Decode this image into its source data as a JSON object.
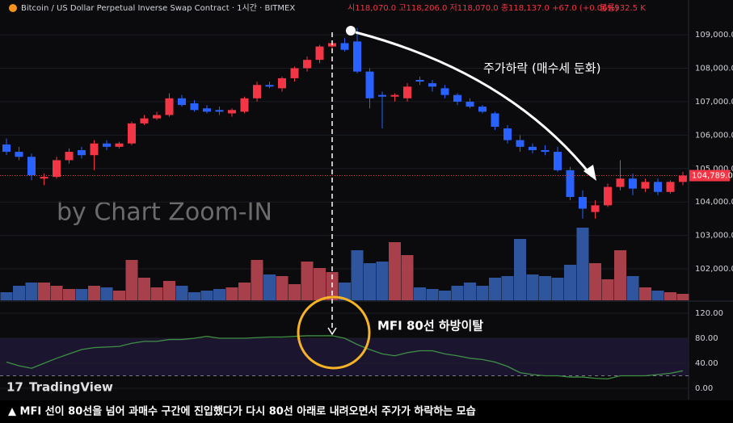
{
  "chart_data": [
    {
      "type": "candlestick",
      "title": "Bitcoin / US Dollar Perpetual Inverse Swap Contract · 1시간 · BITMEX",
      "header_stats": "시118,070.0 고118,206.0 저118,070.0 종118,137.0 +67.0 (+0.06%)",
      "volume_stat": "볼륨932.5 K",
      "watermark": "by Chart Zoom-IN",
      "annotation": "주가하락 (매수세 둔화)",
      "up_color": "#f23645",
      "down_color": "#2962ff",
      "volume_up_color": "#a8404b",
      "volume_down_color": "#2f559e",
      "open": [
        105720,
        105500,
        105350,
        104700,
        104750,
        105250,
        105550,
        105400,
        105750,
        105650,
        105750,
        106350,
        106500,
        106600,
        107100,
        106950,
        106800,
        106750,
        106650,
        106700,
        107100,
        107500,
        107400,
        107700,
        108000,
        108250,
        108650,
        108750,
        108800,
        107900,
        107200,
        107150,
        107100,
        107650,
        107550,
        107400,
        107200,
        107000,
        106850,
        106650,
        106200,
        105850,
        105650,
        105550,
        105500,
        104950,
        104150,
        103700,
        103900,
        104450,
        104700,
        104400,
        104600,
        104300,
        104600
      ],
      "high": [
        105900,
        105650,
        105450,
        104850,
        105350,
        105600,
        105650,
        105850,
        105850,
        105800,
        106400,
        106600,
        106700,
        107250,
        107200,
        107050,
        106900,
        106850,
        106800,
        107150,
        107600,
        107600,
        107750,
        108050,
        108350,
        108700,
        108800,
        108900,
        109200,
        108000,
        107300,
        107250,
        107550,
        107750,
        107650,
        107500,
        107250,
        107100,
        106900,
        106700,
        106300,
        106000,
        105750,
        105700,
        105650,
        105050,
        104350,
        104050,
        104550,
        105250,
        104850,
        104700,
        104700,
        104650,
        104900
      ],
      "low": [
        105400,
        105250,
        104650,
        104500,
        104700,
        105150,
        105300,
        104950,
        105550,
        105600,
        105700,
        106300,
        106450,
        106550,
        106850,
        106700,
        106650,
        106600,
        106550,
        106650,
        107000,
        107400,
        107300,
        107600,
        107900,
        108150,
        108550,
        108500,
        107850,
        106800,
        106200,
        107000,
        107000,
        107500,
        107300,
        107100,
        106900,
        106800,
        106650,
        106150,
        105750,
        105500,
        105450,
        105400,
        104900,
        104050,
        103500,
        103500,
        103850,
        104350,
        104200,
        104300,
        104200,
        104250,
        104500
      ],
      "close": [
        105500,
        105350,
        104800,
        104750,
        105250,
        105500,
        105400,
        105750,
        105650,
        105750,
        106350,
        106500,
        106600,
        107100,
        106900,
        106750,
        106700,
        106700,
        106750,
        107100,
        107500,
        107450,
        107700,
        108000,
        108250,
        108650,
        108750,
        108550,
        107900,
        107100,
        107150,
        107200,
        107450,
        107600,
        107450,
        107200,
        107000,
        106850,
        106700,
        106250,
        105850,
        105650,
        105550,
        105500,
        104950,
        104150,
        103800,
        103900,
        104450,
        104700,
        104400,
        104600,
        104300,
        104600,
        104789
      ],
      "volume": [
        10,
        18,
        22,
        22,
        18,
        14,
        14,
        18,
        16,
        12,
        50,
        28,
        16,
        24,
        18,
        10,
        12,
        14,
        16,
        22,
        50,
        32,
        30,
        20,
        48,
        40,
        35,
        22,
        62,
        46,
        48,
        72,
        56,
        16,
        14,
        12,
        18,
        22,
        18,
        28,
        30,
        76,
        32,
        30,
        28,
        44,
        90,
        46,
        26,
        62,
        30,
        16,
        12,
        10,
        8
      ],
      "volume_lim": [
        0,
        100
      ],
      "ylim": [
        101060,
        110040
      ],
      "yticks": [
        {
          "value": 109000,
          "label": "109,000.0"
        },
        {
          "value": 108000,
          "label": "108,000.0"
        },
        {
          "value": 107000,
          "label": "107,000.0"
        },
        {
          "value": 106000,
          "label": "106,000.0"
        },
        {
          "value": 105000,
          "label": "105,000.0"
        },
        {
          "value": 104000,
          "label": "104,000.0"
        },
        {
          "value": 103000,
          "label": "103,000.0"
        },
        {
          "value": 102000,
          "label": "102,000.0"
        }
      ],
      "last_price": {
        "value": 104789,
        "label": "104,789.0"
      }
    },
    {
      "type": "line",
      "annotation": "MFI 80선 하방이탈",
      "color": "#3f8f46",
      "values": [
        42,
        36,
        32,
        40,
        48,
        55,
        62,
        65,
        66,
        67,
        72,
        75,
        75,
        78,
        78,
        80,
        83,
        80,
        80,
        80,
        81,
        82,
        82,
        83,
        84,
        84,
        84,
        80,
        70,
        62,
        55,
        52,
        57,
        60,
        60,
        55,
        52,
        48,
        46,
        42,
        35,
        25,
        22,
        20,
        20,
        18,
        18,
        16,
        15,
        20,
        20,
        20,
        22,
        24,
        28
      ],
      "ylim": [
        -11.6,
        136.8
      ],
      "yticks": [
        {
          "value": 120,
          "label": "120.00"
        },
        {
          "value": 80,
          "label": "80.00"
        },
        {
          "value": 40,
          "label": "40.00"
        },
        {
          "value": 0,
          "label": "0.00"
        }
      ],
      "bands": [
        20,
        80
      ]
    }
  ],
  "caption": "▲ MFI 선이 80선을 넘어 과매수 구간에 진입했다가 다시 80선 아래로 내려오면서 주가가 하락하는 모습",
  "brand": "TradingView"
}
